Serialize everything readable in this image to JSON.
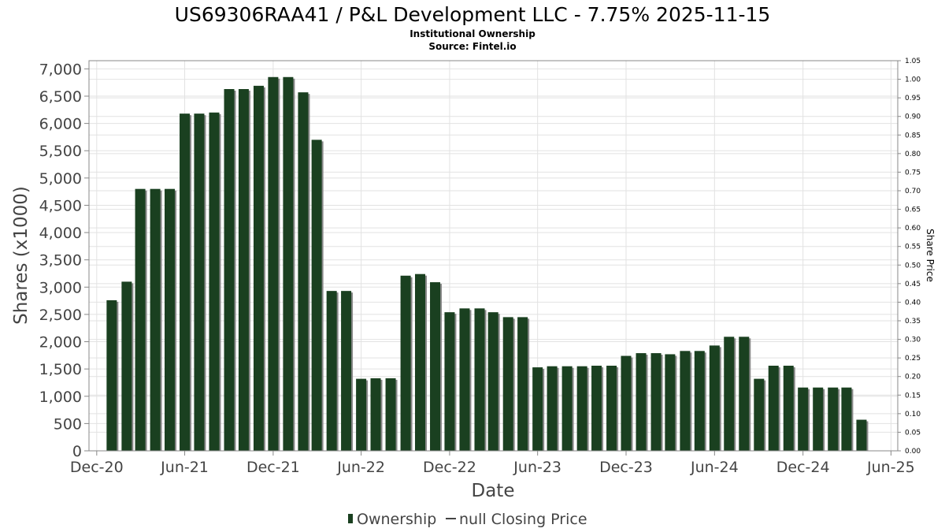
{
  "chart_data": {
    "type": "bar",
    "title": "US69306RAA41 / P&L Development LLC - 7.75% 2025-11-15",
    "subtitle_lines": [
      "Institutional Ownership",
      "Source: Fintel.io"
    ],
    "xlabel": "Date",
    "ylabel": "Shares (x1000)",
    "y2label": "Share Price",
    "xlim": [
      "2020-11-15",
      "2025-06-15"
    ],
    "ylim": [
      0,
      7150
    ],
    "y2lim": [
      0,
      1.05
    ],
    "grid": true,
    "legend_position": "bottom",
    "x_ticks": [
      {
        "label": "Dec-20",
        "date": "2020-12-01"
      },
      {
        "label": "Jun-21",
        "date": "2021-06-01"
      },
      {
        "label": "Dec-21",
        "date": "2021-12-01"
      },
      {
        "label": "Jun-22",
        "date": "2022-06-01"
      },
      {
        "label": "Dec-22",
        "date": "2022-12-01"
      },
      {
        "label": "Jun-23",
        "date": "2023-06-01"
      },
      {
        "label": "Dec-23",
        "date": "2023-12-01"
      },
      {
        "label": "Jun-24",
        "date": "2024-06-01"
      },
      {
        "label": "Dec-24",
        "date": "2024-12-01"
      },
      {
        "label": "Jun-25",
        "date": "2025-06-01"
      }
    ],
    "y_ticks": [
      {
        "label": "0",
        "value": 0
      },
      {
        "label": "500",
        "value": 500
      },
      {
        "label": "1,000",
        "value": 1000
      },
      {
        "label": "1,500",
        "value": 1500
      },
      {
        "label": "2,000",
        "value": 2000
      },
      {
        "label": "2,500",
        "value": 2500
      },
      {
        "label": "3,000",
        "value": 3000
      },
      {
        "label": "3,500",
        "value": 3500
      },
      {
        "label": "4,000",
        "value": 4000
      },
      {
        "label": "4,500",
        "value": 4500
      },
      {
        "label": "5,000",
        "value": 5000
      },
      {
        "label": "5,500",
        "value": 5500
      },
      {
        "label": "6,000",
        "value": 6000
      },
      {
        "label": "6,500",
        "value": 6500
      },
      {
        "label": "7,000",
        "value": 7000
      }
    ],
    "y2_ticks": [
      {
        "label": "0.00",
        "value": 0.0
      },
      {
        "label": "0.05",
        "value": 0.05
      },
      {
        "label": "0.10",
        "value": 0.1
      },
      {
        "label": "0.15",
        "value": 0.15
      },
      {
        "label": "0.20",
        "value": 0.2
      },
      {
        "label": "0.25",
        "value": 0.25
      },
      {
        "label": "0.30",
        "value": 0.3
      },
      {
        "label": "0.35",
        "value": 0.35
      },
      {
        "label": "0.40",
        "value": 0.4
      },
      {
        "label": "0.45",
        "value": 0.45
      },
      {
        "label": "0.50",
        "value": 0.5
      },
      {
        "label": "0.55",
        "value": 0.55
      },
      {
        "label": "0.60",
        "value": 0.6
      },
      {
        "label": "0.65",
        "value": 0.65
      },
      {
        "label": "0.70",
        "value": 0.7
      },
      {
        "label": "0.75",
        "value": 0.75
      },
      {
        "label": "0.80",
        "value": 0.8
      },
      {
        "label": "0.85",
        "value": 0.85
      },
      {
        "label": "0.90",
        "value": 0.9
      },
      {
        "label": "0.95",
        "value": 0.95
      },
      {
        "label": "1.00",
        "value": 1.0
      },
      {
        "label": "1.05",
        "value": 1.05
      }
    ],
    "series": [
      {
        "name": "Ownership",
        "color": "#1a4020",
        "shadow_color": "#888888",
        "x": [
          "2021-01-01",
          "2021-02-01",
          "2021-03-01",
          "2021-04-01",
          "2021-05-01",
          "2021-06-01",
          "2021-07-01",
          "2021-08-01",
          "2021-09-01",
          "2021-10-01",
          "2021-11-01",
          "2021-12-01",
          "2022-01-01",
          "2022-02-01",
          "2022-03-01",
          "2022-04-01",
          "2022-05-01",
          "2022-06-01",
          "2022-07-01",
          "2022-08-01",
          "2022-09-01",
          "2022-10-01",
          "2022-11-01",
          "2022-12-01",
          "2023-01-01",
          "2023-02-01",
          "2023-03-01",
          "2023-04-01",
          "2023-05-01",
          "2023-06-01",
          "2023-07-01",
          "2023-08-01",
          "2023-09-01",
          "2023-10-01",
          "2023-11-01",
          "2023-12-01",
          "2024-01-01",
          "2024-02-01",
          "2024-03-01",
          "2024-04-01",
          "2024-05-01",
          "2024-06-01",
          "2024-07-01",
          "2024-08-01",
          "2024-09-01",
          "2024-10-01",
          "2024-11-01",
          "2024-12-01",
          "2025-01-01",
          "2025-02-01",
          "2025-03-01",
          "2025-04-01"
        ],
        "values": [
          2760,
          3100,
          4800,
          4800,
          4800,
          6180,
          6180,
          6200,
          6630,
          6630,
          6690,
          6850,
          6850,
          6570,
          5700,
          2930,
          2930,
          1320,
          1330,
          1330,
          3210,
          3240,
          3090,
          2540,
          2610,
          2610,
          2540,
          2450,
          2450,
          1530,
          1550,
          1550,
          1550,
          1560,
          1560,
          1740,
          1790,
          1790,
          1770,
          1830,
          1830,
          1930,
          2090,
          2090,
          1320,
          1560,
          1560,
          1160,
          1160,
          1160,
          1160,
          570
        ]
      },
      {
        "name": "null Closing Price",
        "color": "#444444",
        "values": []
      }
    ]
  }
}
